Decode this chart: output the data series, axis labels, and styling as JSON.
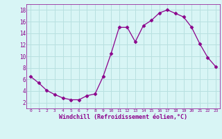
{
  "x": [
    0,
    1,
    2,
    3,
    4,
    5,
    6,
    7,
    8,
    9,
    10,
    11,
    12,
    13,
    14,
    15,
    16,
    17,
    18,
    19,
    20,
    21,
    22,
    23
  ],
  "y": [
    6.5,
    5.4,
    4.1,
    3.4,
    2.8,
    2.5,
    2.5,
    3.2,
    3.5,
    6.5,
    10.5,
    15.0,
    15.0,
    12.5,
    15.3,
    16.2,
    17.5,
    18.0,
    17.4,
    16.8,
    15.0,
    12.2,
    9.8,
    8.2
  ],
  "line_color": "#8B008B",
  "marker": "D",
  "marker_size": 2.5,
  "bg_color": "#d8f5f5",
  "grid_color": "#b8e0e0",
  "xlabel": "Windchill (Refroidissement éolien,°C)",
  "xlabel_color": "#8B008B",
  "tick_color": "#8B008B",
  "ylim": [
    1,
    19
  ],
  "xlim": [
    -0.5,
    23.5
  ],
  "yticks": [
    2,
    4,
    6,
    8,
    10,
    12,
    14,
    16,
    18
  ],
  "xticks": [
    0,
    1,
    2,
    3,
    4,
    5,
    6,
    7,
    8,
    9,
    10,
    11,
    12,
    13,
    14,
    15,
    16,
    17,
    18,
    19,
    20,
    21,
    22,
    23
  ]
}
